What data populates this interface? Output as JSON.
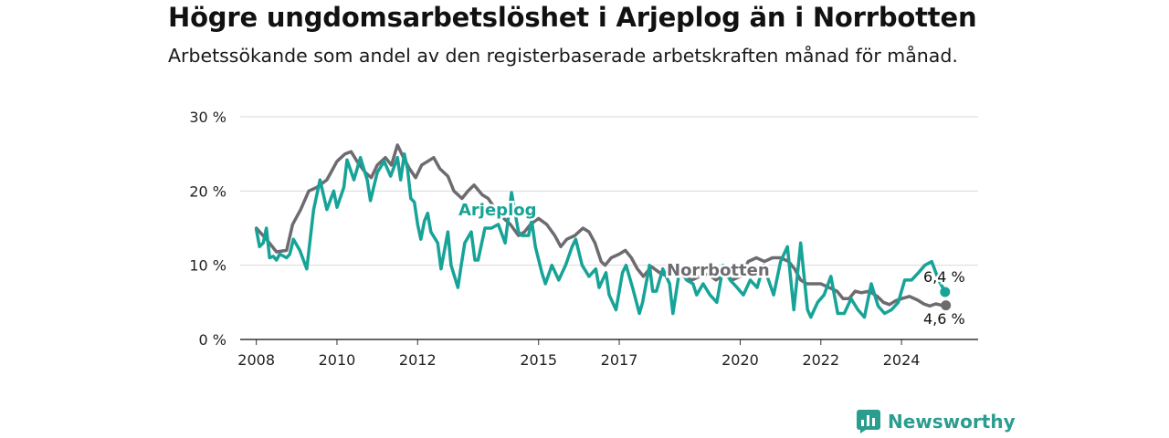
{
  "title": "Högre ungdomsarbetslöshet i Arjeplog än i Norrbotten",
  "subtitle": "Arbetssökande som andel av den registerbaserade arbetskraften månad för månad.",
  "brand": "Newsworthy",
  "chart_data": {
    "type": "line",
    "ylim": [
      0,
      30
    ],
    "yticks": [
      0,
      10,
      20,
      30
    ],
    "ytick_labels": [
      "0 %",
      "10 %",
      "20 %",
      "30 %"
    ],
    "xticks": [
      2008,
      2010,
      2012,
      2015,
      2017,
      2020,
      2022,
      2024
    ],
    "xtick_labels": [
      "2008",
      "2010",
      "2012",
      "2015",
      "2017",
      "2020",
      "2022",
      "2024"
    ],
    "grid": true,
    "series": [
      {
        "name": "Norrbotten",
        "color": "#6d6b70",
        "end_label": "4,6 %",
        "points": [
          [
            2008.0,
            15.0
          ],
          [
            2008.25,
            13.5
          ],
          [
            2008.5,
            11.8
          ],
          [
            2008.75,
            12.0
          ],
          [
            2008.9,
            15.5
          ],
          [
            2009.1,
            17.5
          ],
          [
            2009.3,
            20.0
          ],
          [
            2009.5,
            20.5
          ],
          [
            2009.75,
            21.5
          ],
          [
            2009.9,
            23.0
          ],
          [
            2010.0,
            24.0
          ],
          [
            2010.2,
            25.0
          ],
          [
            2010.35,
            25.3
          ],
          [
            2010.5,
            24.0
          ],
          [
            2010.7,
            22.5
          ],
          [
            2010.85,
            21.8
          ],
          [
            2011.0,
            23.5
          ],
          [
            2011.2,
            24.5
          ],
          [
            2011.35,
            23.5
          ],
          [
            2011.5,
            26.2
          ],
          [
            2011.65,
            24.5
          ],
          [
            2011.8,
            23.0
          ],
          [
            2011.95,
            21.8
          ],
          [
            2012.1,
            23.5
          ],
          [
            2012.25,
            24.0
          ],
          [
            2012.4,
            24.5
          ],
          [
            2012.55,
            23.0
          ],
          [
            2012.75,
            22.0
          ],
          [
            2012.9,
            20.0
          ],
          [
            2013.1,
            19.0
          ],
          [
            2013.25,
            20.0
          ],
          [
            2013.4,
            20.8
          ],
          [
            2013.6,
            19.5
          ],
          [
            2013.75,
            19.0
          ],
          [
            2013.9,
            17.8
          ],
          [
            2014.1,
            16.5
          ],
          [
            2014.3,
            15.5
          ],
          [
            2014.5,
            14.0
          ],
          [
            2014.65,
            14.5
          ],
          [
            2014.8,
            15.5
          ],
          [
            2015.0,
            16.3
          ],
          [
            2015.2,
            15.5
          ],
          [
            2015.4,
            14.0
          ],
          [
            2015.55,
            12.5
          ],
          [
            2015.7,
            13.5
          ],
          [
            2015.9,
            14.0
          ],
          [
            2016.1,
            15.0
          ],
          [
            2016.25,
            14.5
          ],
          [
            2016.4,
            13.0
          ],
          [
            2016.55,
            10.5
          ],
          [
            2016.65,
            10.0
          ],
          [
            2016.8,
            11.0
          ],
          [
            2017.0,
            11.5
          ],
          [
            2017.15,
            12.0
          ],
          [
            2017.3,
            11.0
          ],
          [
            2017.45,
            9.5
          ],
          [
            2017.6,
            8.5
          ],
          [
            2017.8,
            9.8
          ],
          [
            2018.0,
            9.0
          ],
          [
            2018.2,
            8.5
          ],
          [
            2018.4,
            9.0
          ],
          [
            2018.6,
            8.5
          ],
          [
            2018.8,
            8.0
          ],
          [
            2019.0,
            8.5
          ],
          [
            2019.2,
            8.8
          ],
          [
            2019.4,
            8.0
          ],
          [
            2019.6,
            8.8
          ],
          [
            2019.8,
            8.0
          ],
          [
            2020.0,
            8.5
          ],
          [
            2020.2,
            10.5
          ],
          [
            2020.4,
            11.0
          ],
          [
            2020.6,
            10.5
          ],
          [
            2020.8,
            11.0
          ],
          [
            2021.0,
            11.0
          ],
          [
            2021.2,
            10.5
          ],
          [
            2021.35,
            9.5
          ],
          [
            2021.5,
            8.0
          ],
          [
            2021.65,
            7.5
          ],
          [
            2021.8,
            7.5
          ],
          [
            2022.0,
            7.5
          ],
          [
            2022.2,
            7.0
          ],
          [
            2022.4,
            6.5
          ],
          [
            2022.55,
            5.5
          ],
          [
            2022.7,
            5.5
          ],
          [
            2022.85,
            6.5
          ],
          [
            2023.0,
            6.3
          ],
          [
            2023.2,
            6.5
          ],
          [
            2023.4,
            5.8
          ],
          [
            2023.55,
            5.0
          ],
          [
            2023.7,
            4.7
          ],
          [
            2023.85,
            5.2
          ],
          [
            2024.0,
            5.5
          ],
          [
            2024.2,
            5.8
          ],
          [
            2024.4,
            5.3
          ],
          [
            2024.55,
            4.8
          ],
          [
            2024.7,
            4.5
          ],
          [
            2024.85,
            4.8
          ],
          [
            2025.0,
            4.6
          ],
          [
            2025.1,
            4.6
          ]
        ]
      },
      {
        "name": "Arjeplog",
        "color": "#17a398",
        "end_label": "6,4 %",
        "points": [
          [
            2008.0,
            14.8
          ],
          [
            2008.08,
            12.5
          ],
          [
            2008.17,
            13.0
          ],
          [
            2008.25,
            15.0
          ],
          [
            2008.33,
            11.0
          ],
          [
            2008.42,
            11.2
          ],
          [
            2008.5,
            10.7
          ],
          [
            2008.58,
            11.5
          ],
          [
            2008.75,
            11.0
          ],
          [
            2008.83,
            11.5
          ],
          [
            2008.92,
            13.5
          ],
          [
            2009.08,
            12.0
          ],
          [
            2009.25,
            9.5
          ],
          [
            2009.42,
            17.5
          ],
          [
            2009.58,
            21.5
          ],
          [
            2009.75,
            17.5
          ],
          [
            2009.92,
            20.0
          ],
          [
            2010.0,
            17.8
          ],
          [
            2010.17,
            20.5
          ],
          [
            2010.25,
            24.2
          ],
          [
            2010.42,
            21.5
          ],
          [
            2010.58,
            24.5
          ],
          [
            2010.75,
            21.5
          ],
          [
            2010.83,
            18.7
          ],
          [
            2011.0,
            22.5
          ],
          [
            2011.17,
            24.0
          ],
          [
            2011.33,
            22.0
          ],
          [
            2011.5,
            24.5
          ],
          [
            2011.58,
            21.5
          ],
          [
            2011.67,
            25.0
          ],
          [
            2011.75,
            23.0
          ],
          [
            2011.83,
            19.0
          ],
          [
            2011.92,
            18.5
          ],
          [
            2012.0,
            15.5
          ],
          [
            2012.08,
            13.5
          ],
          [
            2012.17,
            16.0
          ],
          [
            2012.25,
            17.0
          ],
          [
            2012.33,
            14.5
          ],
          [
            2012.5,
            13.0
          ],
          [
            2012.58,
            9.5
          ],
          [
            2012.75,
            14.5
          ],
          [
            2012.83,
            10.0
          ],
          [
            2013.0,
            7.0
          ],
          [
            2013.08,
            10.0
          ],
          [
            2013.17,
            13.0
          ],
          [
            2013.33,
            14.5
          ],
          [
            2013.42,
            10.7
          ],
          [
            2013.5,
            10.7
          ],
          [
            2013.67,
            15.0
          ],
          [
            2013.83,
            15.0
          ],
          [
            2014.0,
            15.5
          ],
          [
            2014.17,
            13.0
          ],
          [
            2014.33,
            19.8
          ],
          [
            2014.5,
            14.5
          ],
          [
            2014.58,
            14.0
          ],
          [
            2014.75,
            14.0
          ],
          [
            2014.83,
            16.0
          ],
          [
            2014.92,
            12.5
          ],
          [
            2015.08,
            9.0
          ],
          [
            2015.17,
            7.5
          ],
          [
            2015.33,
            10.0
          ],
          [
            2015.5,
            8.0
          ],
          [
            2015.67,
            10.0
          ],
          [
            2015.83,
            12.5
          ],
          [
            2015.92,
            13.5
          ],
          [
            2016.08,
            10.0
          ],
          [
            2016.25,
            8.5
          ],
          [
            2016.42,
            9.5
          ],
          [
            2016.5,
            7.0
          ],
          [
            2016.67,
            9.0
          ],
          [
            2016.75,
            6.0
          ],
          [
            2016.92,
            4.0
          ],
          [
            2017.08,
            9.0
          ],
          [
            2017.17,
            10.0
          ],
          [
            2017.33,
            7.0
          ],
          [
            2017.5,
            3.5
          ],
          [
            2017.58,
            5.0
          ],
          [
            2017.75,
            10.0
          ],
          [
            2017.83,
            6.5
          ],
          [
            2017.92,
            6.5
          ],
          [
            2018.08,
            9.5
          ],
          [
            2018.25,
            7.5
          ],
          [
            2018.33,
            3.5
          ],
          [
            2018.5,
            9.5
          ],
          [
            2018.67,
            8.0
          ],
          [
            2018.83,
            7.5
          ],
          [
            2018.92,
            6.0
          ],
          [
            2019.08,
            7.5
          ],
          [
            2019.25,
            6.0
          ],
          [
            2019.42,
            5.0
          ],
          [
            2019.58,
            10.0
          ],
          [
            2019.75,
            8.0
          ],
          [
            2019.92,
            7.0
          ],
          [
            2020.08,
            6.0
          ],
          [
            2020.25,
            8.0
          ],
          [
            2020.42,
            7.0
          ],
          [
            2020.58,
            10.0
          ],
          [
            2020.67,
            8.5
          ],
          [
            2020.83,
            6.0
          ],
          [
            2021.0,
            10.5
          ],
          [
            2021.17,
            12.5
          ],
          [
            2021.33,
            4.0
          ],
          [
            2021.5,
            13.0
          ],
          [
            2021.67,
            4.0
          ],
          [
            2021.75,
            3.0
          ],
          [
            2021.92,
            5.0
          ],
          [
            2022.08,
            6.0
          ],
          [
            2022.25,
            8.5
          ],
          [
            2022.42,
            3.5
          ],
          [
            2022.58,
            3.5
          ],
          [
            2022.75,
            5.5
          ],
          [
            2022.92,
            4.0
          ],
          [
            2023.08,
            3.0
          ],
          [
            2023.25,
            7.5
          ],
          [
            2023.42,
            4.5
          ],
          [
            2023.58,
            3.5
          ],
          [
            2023.75,
            4.0
          ],
          [
            2023.92,
            5.0
          ],
          [
            2024.08,
            8.0
          ],
          [
            2024.25,
            8.0
          ],
          [
            2024.42,
            9.0
          ],
          [
            2024.58,
            10.0
          ],
          [
            2024.75,
            10.5
          ],
          [
            2024.92,
            8.0
          ],
          [
            2025.08,
            6.4
          ]
        ]
      }
    ]
  }
}
